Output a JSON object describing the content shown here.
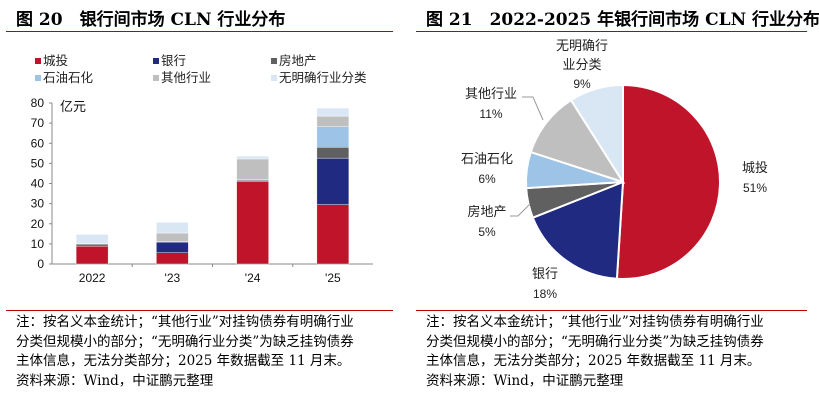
{
  "figures": [
    {
      "title": "图 20　银行间市场 CLN 行业分布",
      "notes": [
        "注：按名义本金统计；“其他行业”对挂钩债券有明确行业",
        "分类但规模小的部分；“无明确行业分类”为缺乏挂钩债券",
        "主体信息，无法分类部分；2025 年数据截至 11 月末。"
      ],
      "source": "资料来源：Wind，中证鹏元整理"
    },
    {
      "title": "图 21　2022-2025 年银行间市场 CLN 行业分布",
      "notes": [
        "注：按名义本金统计；“其他行业”对挂钩债券有明确行业",
        "分类但规模小的部分；“无明确行业分类”为缺乏挂钩债券",
        "主体信息，无法分类部分；2025 年数据截至 11 月末。"
      ],
      "source": "资料来源：Wind，中证鹏元整理"
    }
  ],
  "chart_data": [
    {
      "type": "bar",
      "stacked": true,
      "ylabel": "亿元",
      "ylim": [
        0,
        80
      ],
      "yticks": [
        0,
        10,
        20,
        30,
        40,
        50,
        60,
        70,
        80
      ],
      "categories": [
        "2022",
        "'23",
        "'24",
        "'25"
      ],
      "legend_placement": "top",
      "series": [
        {
          "name": "城投",
          "color": "#c0142a",
          "values": [
            8.9,
            5.6,
            41.0,
            29.5
          ]
        },
        {
          "name": "银行",
          "color": "#1f2a80",
          "values": [
            0,
            5.3,
            0.4,
            23.1
          ]
        },
        {
          "name": "房地产",
          "color": "#606060",
          "values": [
            1.0,
            0.2,
            0.5,
            5.4
          ]
        },
        {
          "name": "石油石化",
          "color": "#9dc3e6",
          "values": [
            0,
            0,
            0,
            10.2
          ]
        },
        {
          "name": "其他行业",
          "color": "#bfbfbf",
          "values": [
            0.3,
            4.3,
            10.3,
            5.3
          ]
        },
        {
          "name": "无明确行业分类",
          "color": "#d9e7f5",
          "values": [
            4.5,
            5.3,
            1.4,
            4.0
          ]
        }
      ]
    },
    {
      "type": "pie",
      "slices": [
        {
          "label": "城投",
          "value": 51,
          "text": "51%",
          "color": "#c0142a"
        },
        {
          "label": "银行",
          "value": 18,
          "text": "18%",
          "color": "#1f2a80"
        },
        {
          "label": "房地产",
          "value": 5,
          "text": "5%",
          "color": "#606060"
        },
        {
          "label": "石油石化",
          "value": 6,
          "text": "6%",
          "color": "#9dc3e6"
        },
        {
          "label": "其他行业",
          "value": 11,
          "text": "11%",
          "color": "#bfbfbf"
        },
        {
          "label": "无明确行业分类",
          "value": 9,
          "text": "9%",
          "color": "#d9e7f5"
        }
      ]
    }
  ]
}
